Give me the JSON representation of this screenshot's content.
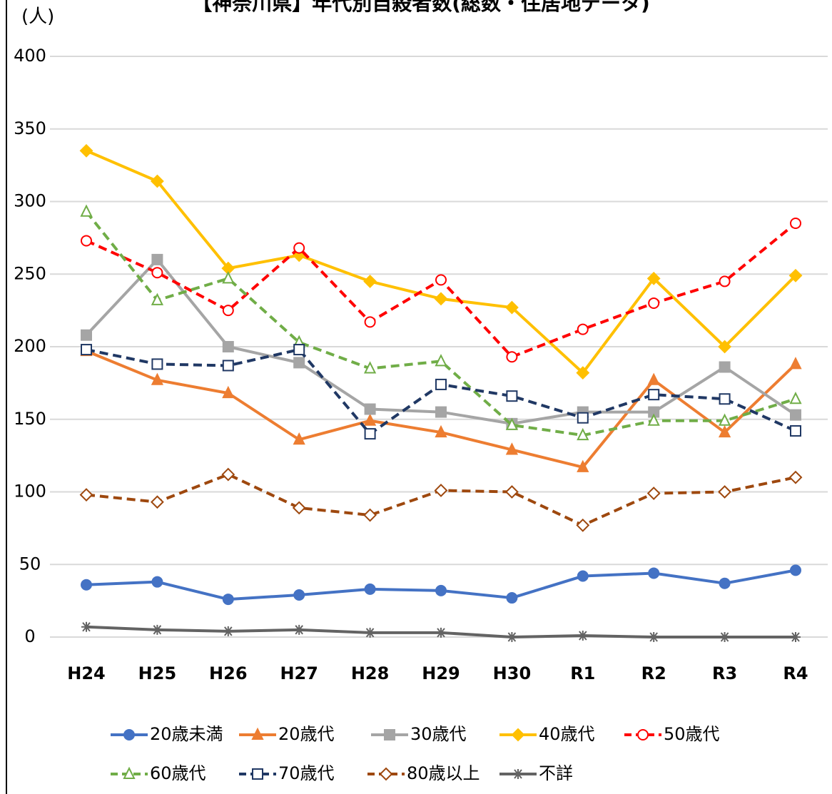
{
  "chart_data": {
    "type": "line",
    "title": "【神奈川県】年代別自殺者数(総数・住居地データ)",
    "y_label": "(人)",
    "categories": [
      "H24",
      "H25",
      "H26",
      "H27",
      "H28",
      "H29",
      "H30",
      "R1",
      "R2",
      "R3",
      "R4"
    ],
    "ylim": [
      0,
      400
    ],
    "yticks": [
      0,
      50,
      100,
      150,
      200,
      250,
      300,
      350,
      400
    ],
    "grid": true,
    "legend": "bottom",
    "series": [
      {
        "name": "20歳未満",
        "color": "#4472c4",
        "marker": "circle",
        "filled": true,
        "dashed": false,
        "values": [
          36,
          38,
          26,
          29,
          33,
          32,
          27,
          42,
          44,
          37,
          46
        ]
      },
      {
        "name": "20歳代",
        "color": "#ed7d31",
        "marker": "triangle",
        "filled": true,
        "dashed": false,
        "values": [
          197,
          177,
          168,
          136,
          149,
          141,
          129,
          117,
          177,
          141,
          188
        ]
      },
      {
        "name": "30歳代",
        "color": "#a5a5a5",
        "marker": "square",
        "filled": true,
        "dashed": false,
        "values": [
          208,
          260,
          200,
          189,
          157,
          155,
          147,
          155,
          155,
          186,
          153
        ]
      },
      {
        "name": "40歳代",
        "color": "#ffc000",
        "marker": "diamond",
        "filled": true,
        "dashed": false,
        "values": [
          335,
          314,
          254,
          263,
          245,
          233,
          227,
          182,
          247,
          200,
          249
        ]
      },
      {
        "name": "50歳代",
        "color": "#ff0000",
        "marker": "circle",
        "filled": false,
        "dashed": true,
        "values": [
          273,
          251,
          225,
          268,
          217,
          246,
          193,
          212,
          230,
          245,
          285
        ]
      },
      {
        "name": "60歳代",
        "color": "#70ad47",
        "marker": "triangle",
        "filled": false,
        "dashed": true,
        "values": [
          293,
          232,
          247,
          203,
          185,
          190,
          146,
          139,
          149,
          149,
          164
        ]
      },
      {
        "name": "70歳代",
        "color": "#203864",
        "marker": "square",
        "filled": false,
        "dashed": true,
        "values": [
          198,
          188,
          187,
          198,
          140,
          174,
          166,
          151,
          167,
          164,
          142
        ]
      },
      {
        "name": "80歳以上",
        "color": "#9e480e",
        "marker": "diamond",
        "filled": false,
        "dashed": true,
        "values": [
          98,
          93,
          112,
          89,
          84,
          101,
          100,
          77,
          99,
          100,
          110
        ]
      },
      {
        "name": "不詳",
        "color": "#636363",
        "marker": "asterisk",
        "filled": true,
        "dashed": false,
        "values": [
          7,
          5,
          4,
          5,
          3,
          3,
          0,
          1,
          0,
          0,
          0
        ]
      }
    ]
  }
}
